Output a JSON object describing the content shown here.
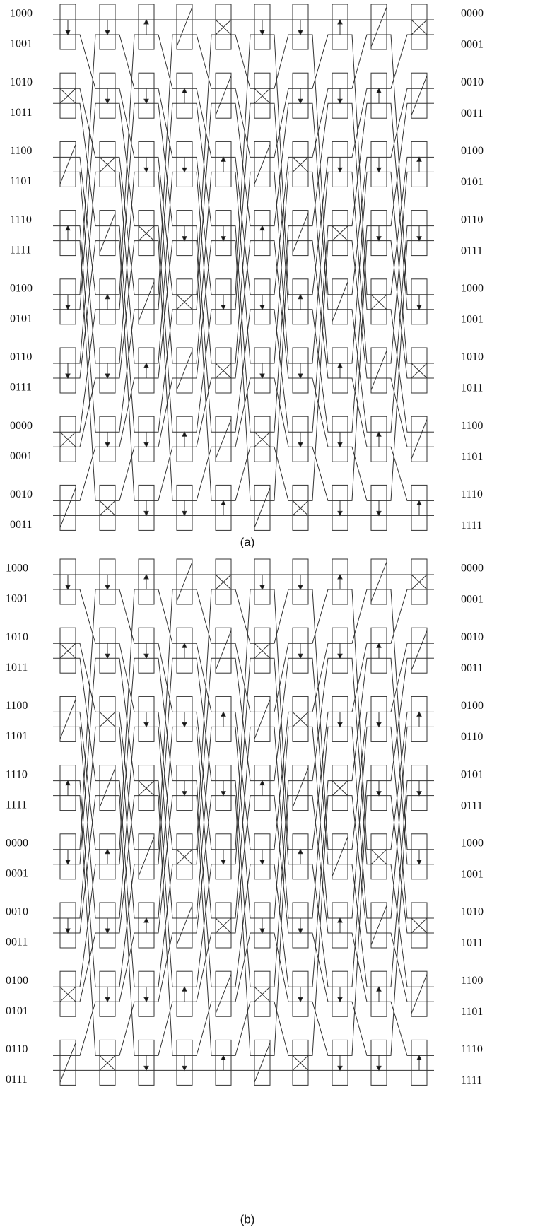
{
  "diagrams": [
    {
      "caption": "(a)",
      "inputs": [
        "1000",
        "1001",
        "1010",
        "1011",
        "1100",
        "1101",
        "1110",
        "1111",
        "0100",
        "0101",
        "0110",
        "0111",
        "0000",
        "0001",
        "0010",
        "0011"
      ],
      "outputs": [
        "0000",
        "0001",
        "0010",
        "0011",
        "0100",
        "0101",
        "0110",
        "0111",
        "1000",
        "1001",
        "1010",
        "1011",
        "1100",
        "1101",
        "1110",
        "1111"
      ]
    },
    {
      "caption": "(b)",
      "inputs": [
        "1000",
        "1001",
        "1010",
        "1011",
        "1100",
        "1101",
        "1110",
        "1111",
        "0000",
        "0001",
        "0010",
        "0011",
        "0100",
        "0101",
        "0110",
        "0111"
      ],
      "outputs": [
        "0000",
        "0001",
        "0010",
        "0011",
        "0100",
        "0110",
        "0101",
        "0111",
        "1000",
        "1001",
        "1010",
        "1011",
        "1100",
        "1101",
        "1110",
        "1111"
      ]
    }
  ]
}
